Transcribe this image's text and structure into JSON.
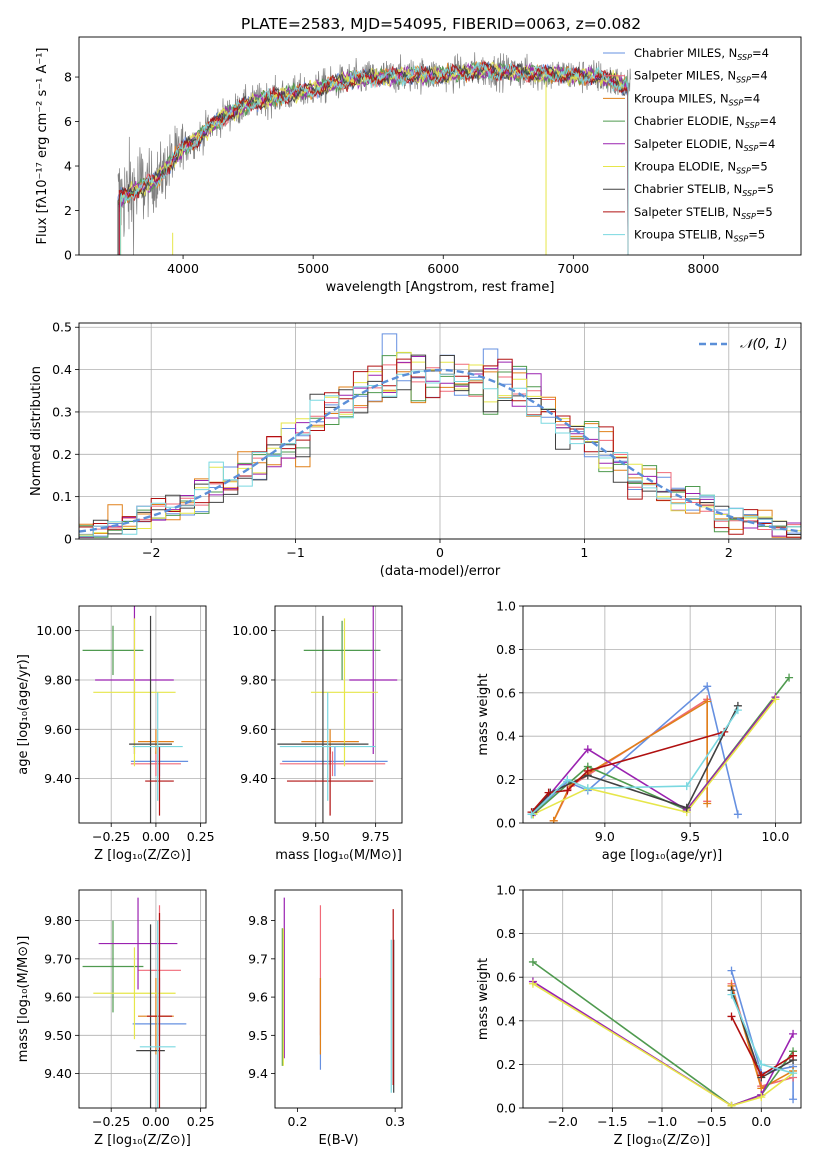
{
  "title": "PLATE=2583, MJD=54095, FIBERID=0063, z=0.082",
  "models": [
    {
      "name": "Chabrier MILES",
      "nssp": "4",
      "color": "#6690e0"
    },
    {
      "name": "Salpeter MILES",
      "nssp": "4",
      "color": "#f06a78"
    },
    {
      "name": "Kroupa MILES",
      "nssp": "4",
      "color": "#e0801a"
    },
    {
      "name": "Chabrier ELODIE",
      "nssp": "4",
      "color": "#4f9a4f"
    },
    {
      "name": "Salpeter ELODIE",
      "nssp": "4",
      "color": "#9a22b0"
    },
    {
      "name": "Kroupa ELODIE",
      "nssp": "5",
      "color": "#e6e64a"
    },
    {
      "name": "Chabrier STELIB",
      "nssp": "5",
      "color": "#404040"
    },
    {
      "name": "Salpeter STELIB",
      "nssp": "5",
      "color": "#b01010"
    },
    {
      "name": "Kroupa STELIB",
      "nssp": "5",
      "color": "#7ad8e0"
    }
  ],
  "colors": {
    "data": "#808080",
    "normal": "#5b8fd8",
    "grid": "#b0b0b0"
  },
  "chart_data": [
    {
      "id": "spectrum",
      "type": "line",
      "xlabel": "wavelength [Angstrom, rest frame]",
      "ylabel": "Flux [fλ10⁻¹⁷ erg cm⁻² s⁻¹ A⁻¹]",
      "xlim": [
        3200,
        8750
      ],
      "ylim": [
        0,
        9.8
      ],
      "xticks": [
        4000,
        5000,
        6000,
        7000,
        8000
      ],
      "yticks": [
        0,
        2,
        4,
        6,
        8
      ],
      "grid": false,
      "legend": "right",
      "continuum": {
        "x": [
          3500,
          3600,
          3800,
          4000,
          4100,
          4300,
          4500,
          4700,
          4900,
          5100,
          5300,
          5500,
          5800,
          6000,
          6300,
          6600,
          6900,
          7200,
          7400
        ],
        "y": [
          2.5,
          2.8,
          3.4,
          4.8,
          5.2,
          6.2,
          6.8,
          7.1,
          7.3,
          7.6,
          7.9,
          8.0,
          8.1,
          8.1,
          8.3,
          8.2,
          8.1,
          8.0,
          7.6
        ]
      }
    },
    {
      "id": "residuals",
      "type": "histogram",
      "xlabel": "(data-model)/error",
      "ylabel": "Normed distribution",
      "xlim": [
        -2.5,
        2.5
      ],
      "ylim": [
        0,
        0.51
      ],
      "xticks": [
        -2,
        -1,
        0,
        1,
        2
      ],
      "yticks": [
        0.0,
        0.1,
        0.2,
        0.3,
        0.4,
        0.5
      ],
      "grid": true,
      "legend": "top-right",
      "legend_label": "𝒩(0, 1)"
    },
    {
      "id": "age-vs-z",
      "type": "errorbar",
      "xlabel": "Z [log₁₀(Z/Z⊙)]",
      "ylabel": "age  [log₁₀(age/yr)]",
      "xlim": [
        -0.43,
        0.28
      ],
      "ylim": [
        9.22,
        10.1
      ],
      "xticks": [
        -0.25,
        0.0,
        0.25
      ],
      "yticks": [
        9.4,
        9.6,
        9.8,
        10.0
      ],
      "grid": true,
      "points": [
        {
          "m": 0,
          "x": 0.02,
          "y": 9.47,
          "xe": 0.16,
          "ye": 0.06
        },
        {
          "m": 1,
          "x": 0.0,
          "y": 9.46,
          "xe": 0.14,
          "ye": 0.05
        },
        {
          "m": 2,
          "x": 0.0,
          "y": 9.55,
          "xe": 0.1,
          "ye": 0.05
        },
        {
          "m": 3,
          "x": -0.24,
          "y": 9.92,
          "xe": 0.17,
          "ye": 0.1
        },
        {
          "m": 4,
          "x": -0.12,
          "y": 9.8,
          "xe": 0.22,
          "ye": 0.3
        },
        {
          "m": 5,
          "x": -0.12,
          "y": 9.75,
          "xe": 0.23,
          "ye": 0.3
        },
        {
          "m": 6,
          "x": -0.03,
          "y": 9.54,
          "xe": 0.12,
          "ye": 0.52
        },
        {
          "m": 7,
          "x": 0.02,
          "y": 9.39,
          "xe": 0.08,
          "ye": 0.14
        },
        {
          "m": 8,
          "x": 0.01,
          "y": 9.53,
          "xe": 0.14,
          "ye": 0.22
        }
      ]
    },
    {
      "id": "age-vs-mass",
      "type": "errorbar",
      "xlabel": "mass [log₁₀(M/M⊙)]",
      "ylabel": "",
      "xlim": [
        9.33,
        9.86
      ],
      "ylim": [
        9.22,
        10.1
      ],
      "xticks": [
        9.5,
        9.75
      ],
      "yticks": [
        9.4,
        9.6,
        9.8,
        10.0
      ],
      "grid": true,
      "points": [
        {
          "m": 0,
          "x": 9.58,
          "y": 9.47,
          "xe": 0.22,
          "ye": 0.06
        },
        {
          "m": 1,
          "x": 9.57,
          "y": 9.46,
          "xe": 0.22,
          "ye": 0.05
        },
        {
          "m": 2,
          "x": 9.56,
          "y": 9.55,
          "xe": 0.12,
          "ye": 0.05
        },
        {
          "m": 3,
          "x": 9.61,
          "y": 9.92,
          "xe": 0.16,
          "ye": 0.12
        },
        {
          "m": 4,
          "x": 9.74,
          "y": 9.8,
          "xe": 0.1,
          "ye": 0.3
        },
        {
          "m": 5,
          "x": 9.62,
          "y": 9.75,
          "xe": 0.14,
          "ye": 0.3
        },
        {
          "m": 6,
          "x": 9.53,
          "y": 9.54,
          "xe": 0.19,
          "ye": 0.52
        },
        {
          "m": 7,
          "x": 9.56,
          "y": 9.39,
          "xe": 0.18,
          "ye": 0.14
        },
        {
          "m": 8,
          "x": 9.55,
          "y": 9.53,
          "xe": 0.2,
          "ye": 0.22
        }
      ]
    },
    {
      "id": "weight-vs-age",
      "type": "line",
      "xlabel": "age  [log₁₀(age/yr)]",
      "ylabel": "mass weight",
      "xlim": [
        8.52,
        10.15
      ],
      "ylim": [
        0,
        1.0
      ],
      "xticks": [
        9.0,
        9.5,
        10.0
      ],
      "yticks": [
        0.0,
        0.2,
        0.4,
        0.6,
        0.8,
        1.0
      ],
      "grid": true,
      "series": [
        {
          "m": 0,
          "x": [
            8.57,
            8.78,
            8.9,
            9.6,
            9.78
          ],
          "y": [
            0.04,
            0.19,
            0.15,
            0.63,
            0.04
          ]
        },
        {
          "m": 1,
          "x": [
            8.7,
            8.8,
            9.6,
            9.6
          ],
          "y": [
            0.01,
            0.17,
            0.57,
            0.1
          ]
        },
        {
          "m": 2,
          "x": [
            8.7,
            8.8,
            9.6,
            9.6
          ],
          "y": [
            0.01,
            0.18,
            0.56,
            0.09
          ]
        },
        {
          "m": 3,
          "x": [
            8.58,
            8.9,
            9.48,
            10.08
          ],
          "y": [
            0.04,
            0.26,
            0.06,
            0.67
          ]
        },
        {
          "m": 4,
          "x": [
            8.59,
            8.9,
            9.48,
            10.0
          ],
          "y": [
            0.05,
            0.34,
            0.06,
            0.58
          ]
        },
        {
          "m": 5,
          "x": [
            8.58,
            8.9,
            9.48,
            10.0
          ],
          "y": [
            0.04,
            0.16,
            0.05,
            0.57
          ]
        },
        {
          "m": 6,
          "x": [
            8.58,
            8.68,
            8.9,
            9.48,
            9.78
          ],
          "y": [
            0.05,
            0.14,
            0.22,
            0.07,
            0.54
          ]
        },
        {
          "m": 7,
          "x": [
            8.57,
            8.67,
            8.78,
            8.9,
            9.7
          ],
          "y": [
            0.05,
            0.14,
            0.15,
            0.24,
            0.42
          ]
        },
        {
          "m": 8,
          "x": [
            8.57,
            8.78,
            8.9,
            9.48,
            9.78
          ],
          "y": [
            0.04,
            0.2,
            0.16,
            0.17,
            0.52
          ]
        }
      ]
    },
    {
      "id": "mass-vs-z",
      "type": "errorbar",
      "xlabel": "Z [log₁₀(Z/Z⊙)]",
      "ylabel": "mass [log₁₀(M/M⊙)]",
      "xlim": [
        -0.43,
        0.28
      ],
      "ylim": [
        9.31,
        9.88
      ],
      "xticks": [
        -0.25,
        0.0,
        0.25
      ],
      "yticks": [
        9.4,
        9.5,
        9.6,
        9.7,
        9.8
      ],
      "grid": true,
      "points": [
        {
          "m": 0,
          "x": 0.02,
          "y": 9.53,
          "xe": 0.15,
          "ye": 0.12
        },
        {
          "m": 1,
          "x": 0.02,
          "y": 9.67,
          "xe": 0.12,
          "ye": 0.17
        },
        {
          "m": 2,
          "x": 0.0,
          "y": 9.55,
          "xe": 0.1,
          "ye": 0.1
        },
        {
          "m": 3,
          "x": -0.24,
          "y": 9.68,
          "xe": 0.17,
          "ye": 0.12
        },
        {
          "m": 4,
          "x": -0.1,
          "y": 9.74,
          "xe": 0.22,
          "ye": 0.12
        },
        {
          "m": 5,
          "x": -0.12,
          "y": 9.61,
          "xe": 0.23,
          "ye": 0.12
        },
        {
          "m": 6,
          "x": -0.03,
          "y": 9.46,
          "xe": 0.08,
          "ye": 0.33
        },
        {
          "m": 7,
          "x": 0.02,
          "y": 9.55,
          "xe": 0.07,
          "ye": 0.27
        },
        {
          "m": 8,
          "x": 0.01,
          "y": 9.47,
          "xe": 0.1,
          "ye": 0.33
        }
      ]
    },
    {
      "id": "mass-vs-ebv",
      "type": "errorbar",
      "xlabel": "E(B-V)",
      "ylabel": "",
      "xlim": [
        0.177,
        0.307
      ],
      "ylim": [
        9.31,
        9.88
      ],
      "xticks": [
        0.2,
        0.3
      ],
      "yticks": [
        9.4,
        9.5,
        9.6,
        9.7,
        9.8
      ],
      "grid": false,
      "points": [
        {
          "m": 0,
          "x": 0.2235,
          "y": 9.53,
          "xe": 0,
          "ye": 0.12
        },
        {
          "m": 1,
          "x": 0.2235,
          "y": 9.67,
          "xe": 0,
          "ye": 0.17
        },
        {
          "m": 2,
          "x": 0.2235,
          "y": 9.55,
          "xe": 0,
          "ye": 0.1
        },
        {
          "m": 3,
          "x": 0.1845,
          "y": 9.6,
          "xe": 0,
          "ye": 0.18
        },
        {
          "m": 4,
          "x": 0.1865,
          "y": 9.65,
          "xe": 0,
          "ye": 0.21
        },
        {
          "m": 5,
          "x": 0.1855,
          "y": 9.6,
          "xe": 0,
          "ye": 0.18
        },
        {
          "m": 6,
          "x": 0.2985,
          "y": 9.55,
          "xe": 0,
          "ye": 0.2
        },
        {
          "m": 7,
          "x": 0.298,
          "y": 9.6,
          "xe": 0,
          "ye": 0.23
        },
        {
          "m": 8,
          "x": 0.296,
          "y": 9.55,
          "xe": 0,
          "ye": 0.2
        }
      ]
    },
    {
      "id": "weight-vs-z",
      "type": "line",
      "xlabel": "Z [log₁₀(Z/Z⊙)]",
      "ylabel": "mass weight",
      "xlim": [
        -2.4,
        0.4
      ],
      "ylim": [
        0,
        1.0
      ],
      "xticks": [
        -2.0,
        -1.5,
        -1.0,
        -0.5,
        0.0
      ],
      "yticks": [
        0.0,
        0.2,
        0.4,
        0.6,
        0.8,
        1.0
      ],
      "grid": true,
      "series": [
        {
          "m": 0,
          "x": [
            -0.3,
            0.0,
            0.32,
            0.32
          ],
          "y": [
            0.63,
            0.16,
            0.19,
            0.04
          ]
        },
        {
          "m": 1,
          "x": [
            -0.3,
            0.0,
            0.32
          ],
          "y": [
            0.57,
            0.1,
            0.14
          ]
        },
        {
          "m": 2,
          "x": [
            -0.3,
            0.0,
            0.32
          ],
          "y": [
            0.56,
            0.09,
            0.17
          ]
        },
        {
          "m": 3,
          "x": [
            -2.3,
            -0.3,
            0.0,
            0.32
          ],
          "y": [
            0.67,
            0.01,
            0.06,
            0.26
          ]
        },
        {
          "m": 4,
          "x": [
            -2.3,
            -0.3,
            0.0,
            0.32
          ],
          "y": [
            0.58,
            0.01,
            0.06,
            0.34
          ]
        },
        {
          "m": 5,
          "x": [
            -2.3,
            -0.3,
            0.0,
            0.32
          ],
          "y": [
            0.57,
            0.01,
            0.05,
            0.16
          ]
        },
        {
          "m": 6,
          "x": [
            -0.3,
            0.0,
            0.32
          ],
          "y": [
            0.54,
            0.14,
            0.22
          ]
        },
        {
          "m": 7,
          "x": [
            -0.3,
            0.0,
            0.32
          ],
          "y": [
            0.42,
            0.15,
            0.24
          ]
        },
        {
          "m": 8,
          "x": [
            -0.3,
            0.0,
            0.32
          ],
          "y": [
            0.52,
            0.2,
            0.16
          ]
        }
      ]
    }
  ]
}
